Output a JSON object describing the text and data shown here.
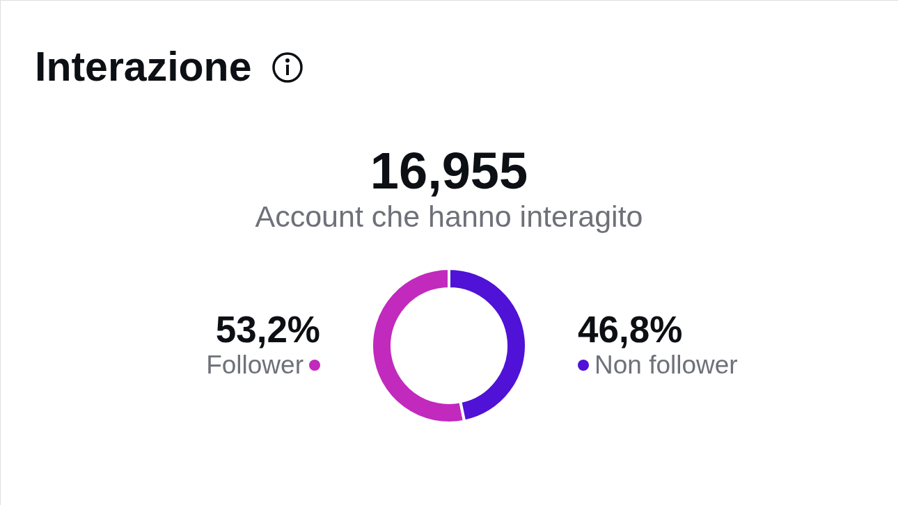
{
  "chart_data": {
    "type": "donut",
    "title": "Interazione",
    "categories": [
      "Follower",
      "Non follower"
    ],
    "values": [
      53.2,
      46.8
    ],
    "colors": [
      "#c12abd",
      "#4f12d6"
    ],
    "value_labels": [
      "53,2%",
      "46,8%"
    ],
    "annotations": [
      "16,955",
      "Account che hanno interagito"
    ]
  }
}
